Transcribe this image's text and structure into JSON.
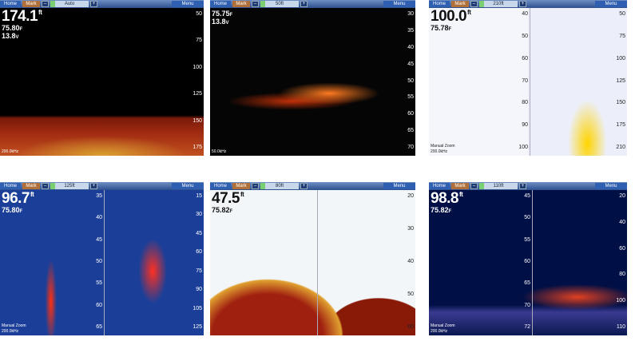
{
  "panels": [
    {
      "toolbar": {
        "home": "Home",
        "mark": "Mark",
        "minus": "–",
        "range": "Auto",
        "plus": "+",
        "menu": "Menu"
      },
      "depth": {
        "value": "174.1",
        "unit": "ft"
      },
      "temperature": {
        "value": "75.80",
        "unit": "F"
      },
      "voltage": {
        "value": "13.8",
        "unit": "V"
      },
      "scale_right": [
        50,
        75,
        100,
        125,
        150,
        175
      ],
      "footer": [
        "200.0kHz"
      ]
    },
    {
      "toolbar": {
        "home": "Home",
        "mark": "Mark",
        "minus": "–",
        "range": "50ft",
        "plus": "+",
        "menu": "Menu"
      },
      "temperature": {
        "value": "75.75",
        "unit": "F"
      },
      "voltage": {
        "value": "13.8",
        "unit": "V"
      },
      "scale_right": [
        30,
        35,
        40,
        45,
        50,
        55,
        60,
        65,
        70
      ],
      "footer": [
        "50.0kHz"
      ]
    },
    {
      "toolbar": {
        "home": "Home",
        "mark": "Mark",
        "minus": "–",
        "range": "210ft",
        "plus": "+",
        "menu": "Menu"
      },
      "depth": {
        "value": "100.0",
        "unit": "ft"
      },
      "temperature": {
        "value": "75.78",
        "unit": "F"
      },
      "scale_left": [
        40,
        50,
        60,
        70,
        80,
        90,
        100
      ],
      "scale_right": [
        50,
        75,
        100,
        125,
        150,
        175,
        210
      ],
      "footer": [
        "Manual Zoom",
        "200.0kHz"
      ]
    },
    {
      "toolbar": {
        "home": "Home",
        "mark": "Mark",
        "minus": "–",
        "range": "125ft",
        "plus": "+",
        "menu": "Menu"
      },
      "depth": {
        "value": "96.7",
        "unit": "ft"
      },
      "temperature": {
        "value": "75.80",
        "unit": "F"
      },
      "scale_left": [
        35,
        40,
        45,
        50,
        55,
        60,
        65
      ],
      "scale_right": [
        15,
        30,
        45,
        60,
        75,
        90,
        105,
        125
      ],
      "footer": [
        "Manual Zoom",
        "200.0kHz"
      ]
    },
    {
      "toolbar": {
        "home": "Home",
        "mark": "Mark",
        "minus": "–",
        "range": "80ft",
        "plus": "+",
        "menu": "Menu"
      },
      "depth": {
        "value": "47.5",
        "unit": "ft"
      },
      "temperature": {
        "value": "75.82",
        "unit": "F"
      },
      "scale_right": [
        20,
        30,
        40,
        50,
        60
      ]
    },
    {
      "toolbar": {
        "home": "Home",
        "mark": "Mark",
        "minus": "–",
        "range": "110ft",
        "plus": "+",
        "menu": "Menu"
      },
      "depth": {
        "value": "98.8",
        "unit": "ft"
      },
      "temperature": {
        "value": "75.82",
        "unit": "F"
      },
      "scale_left": [
        45,
        50,
        55,
        60,
        65,
        70,
        72
      ],
      "scale_right": [
        20,
        40,
        60,
        80,
        100,
        110
      ],
      "footer": [
        "Manual Zoom",
        "200.0kHz"
      ]
    }
  ]
}
